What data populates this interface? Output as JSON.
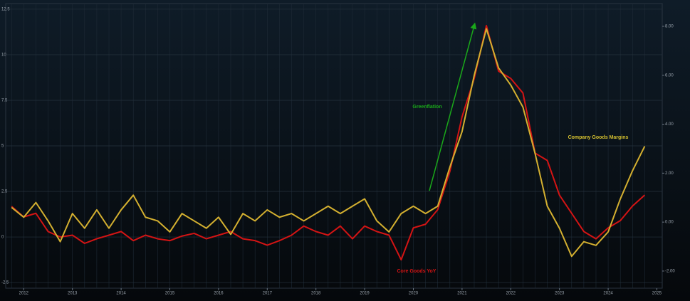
{
  "chart_data": {
    "type": "line",
    "x": [
      2012.25,
      2012.5,
      2012.75,
      2013.0,
      2013.25,
      2013.5,
      2013.75,
      2014.0,
      2014.25,
      2014.5,
      2014.75,
      2015.0,
      2015.25,
      2015.5,
      2015.75,
      2016.0,
      2016.25,
      2016.5,
      2016.75,
      2017.0,
      2017.25,
      2017.5,
      2017.75,
      2018.0,
      2018.25,
      2018.5,
      2018.75,
      2019.0,
      2019.25,
      2019.5,
      2019.75,
      2020.0,
      2020.25,
      2020.5,
      2020.75,
      2021.0,
      2021.25,
      2021.5,
      2021.75,
      2022.0,
      2022.25,
      2022.5,
      2022.75,
      2023.0,
      2023.25,
      2023.5,
      2023.75,
      2024.0,
      2024.25,
      2024.5,
      2024.75,
      2025.0,
      2025.25
    ],
    "series": [
      {
        "name": "Core Goods YoY",
        "color": "#d41414",
        "axis": "y",
        "values": [
          1.68,
          1.1,
          1.3,
          0.3,
          0,
          0.1,
          -0.35,
          -0.1,
          0.1,
          0.3,
          -0.2,
          0.1,
          -0.1,
          -0.2,
          0.05,
          0.2,
          -0.1,
          0.1,
          0.3,
          -0.1,
          -0.2,
          -0.45,
          -0.2,
          0.1,
          0.6,
          0.3,
          0.1,
          0.6,
          -0.1,
          0.6,
          0.3,
          0.1,
          -1.25,
          0.5,
          0.7,
          1.5,
          3.6,
          6.6,
          8.7,
          11.6,
          9.1,
          8.7,
          7.9,
          4.6,
          4.2,
          2.3,
          1.3,
          0.3,
          -0.1,
          0.5,
          0.9,
          1.7,
          2.3
        ]
      },
      {
        "name": "Company Goods Margins",
        "color": "#d4b030",
        "axis": "y2",
        "values": [
          0.6,
          0.2,
          0.8,
          0.05,
          -0.8,
          0.35,
          -0.25,
          0.5,
          -0.25,
          0.5,
          1.1,
          0.2,
          0.05,
          -0.4,
          0.35,
          0.05,
          -0.25,
          0.2,
          -0.5,
          0.35,
          0.05,
          0.5,
          0.2,
          0.35,
          0.05,
          0.35,
          0.65,
          0.35,
          0.65,
          0.95,
          0.05,
          -0.4,
          0.35,
          0.65,
          0.35,
          0.65,
          2.25,
          3.7,
          6.0,
          7.9,
          6.3,
          5.6,
          4.7,
          2.8,
          0.65,
          -0.25,
          -1.4,
          -0.8,
          -0.95,
          -0.4,
          0.95,
          2.1,
          3.1
        ]
      }
    ],
    "annotations": [
      "Greenflation"
    ],
    "xlim": [
      2012.13,
      2025.61
    ],
    "xticks": [
      {
        "value": 2012.5,
        "label": "2012"
      },
      {
        "value": 2013.5,
        "label": "2013"
      },
      {
        "value": 2014.5,
        "label": "2014"
      },
      {
        "value": 2015.5,
        "label": "2015"
      },
      {
        "value": 2016.5,
        "label": "2016"
      },
      {
        "value": 2017.5,
        "label": "2017"
      },
      {
        "value": 2018.5,
        "label": "2018"
      },
      {
        "value": 2019.5,
        "label": "2019"
      },
      {
        "value": 2020.5,
        "label": "2020"
      },
      {
        "value": 2021.5,
        "label": "2021"
      },
      {
        "value": 2022.5,
        "label": "2022"
      },
      {
        "value": 2023.5,
        "label": "2023"
      },
      {
        "value": 2024.5,
        "label": "2024"
      },
      {
        "value": 2025.5,
        "label": "2025"
      }
    ],
    "ylim": [
      -2.81,
      12.81
    ],
    "yticks": [
      -2.5,
      0,
      2.5,
      5,
      7.5,
      10,
      12.5
    ],
    "y2lim": [
      -2.7,
      8.93
    ],
    "y2ticks": [
      {
        "value": -2,
        "label": "-2.00"
      },
      {
        "value": 0,
        "label": "0.00"
      },
      {
        "value": 2,
        "label": "2.00"
      },
      {
        "value": 4,
        "label": "4.00"
      },
      {
        "value": 6,
        "label": "6.00"
      },
      {
        "value": 8,
        "label": "8.00"
      }
    ],
    "grid": true
  }
}
